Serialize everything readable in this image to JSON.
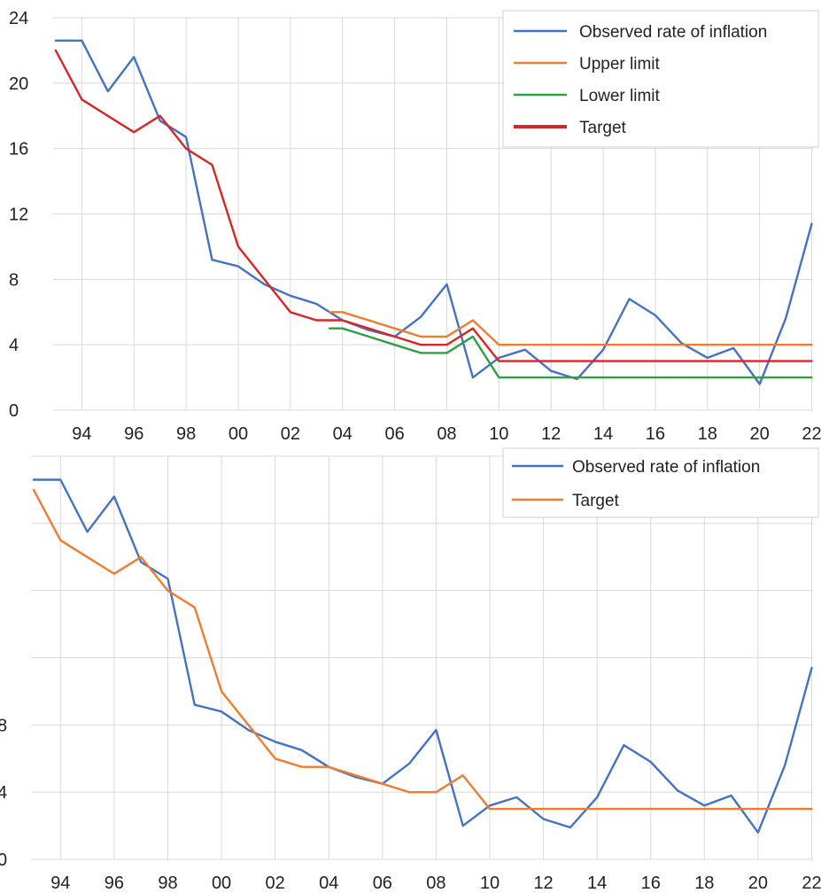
{
  "chart_data": [
    {
      "type": "line",
      "ylim": [
        0,
        24
      ],
      "yticks": [
        0,
        4,
        8,
        12,
        16,
        20,
        24
      ],
      "xlim": [
        1992.9,
        2022.05
      ],
      "xtick_labels": [
        "94",
        "96",
        "98",
        "00",
        "02",
        "04",
        "06",
        "08",
        "10",
        "12",
        "14",
        "16",
        "18",
        "20",
        "22"
      ],
      "grid": "vertical and horizontal",
      "legend_position": "top-right",
      "series": [
        {
          "name": "Observed rate of inflation",
          "color": "#4472c4",
          "x": [
            1993,
            1994,
            1995,
            1996,
            1997,
            1998,
            1999,
            2000,
            2001,
            2002,
            2003,
            2004,
            2005,
            2006,
            2007,
            2008,
            2009,
            2010,
            2011,
            2012,
            2013,
            2014,
            2015,
            2016,
            2017,
            2018,
            2019,
            2020,
            2021,
            2022
          ],
          "y": [
            22.6,
            22.6,
            19.5,
            21.6,
            17.7,
            16.7,
            9.2,
            8.8,
            7.7,
            7.0,
            6.5,
            5.5,
            4.9,
            4.5,
            5.7,
            7.7,
            2.0,
            3.2,
            3.7,
            2.4,
            1.9,
            3.7,
            6.8,
            5.8,
            4.1,
            3.2,
            3.8,
            1.6,
            5.6,
            11.4
          ]
        },
        {
          "name": "Upper limit",
          "color": "#ed7d31",
          "x": [
            2003.5,
            2004,
            2005,
            2006,
            2007,
            2008,
            2009,
            2010,
            2022
          ],
          "y": [
            6.0,
            6.0,
            5.5,
            5.0,
            4.5,
            4.5,
            5.5,
            4.0,
            4.0
          ]
        },
        {
          "name": "Lower limit",
          "color": "#2ea043",
          "x": [
            2003.5,
            2004,
            2005,
            2006,
            2007,
            2008,
            2009,
            2010,
            2022
          ],
          "y": [
            5.0,
            5.0,
            4.5,
            4.0,
            3.5,
            3.5,
            4.5,
            2.0,
            2.0
          ]
        },
        {
          "name": "Target",
          "color": "#d62728",
          "x": [
            1993,
            1994,
            1995,
            1996,
            1997,
            1998,
            1999,
            2000,
            2001,
            2002,
            2003,
            2004,
            2005,
            2006,
            2007,
            2008,
            2009,
            2010,
            2022
          ],
          "y": [
            22.0,
            19.0,
            18.0,
            17.0,
            18.0,
            16.0,
            15.0,
            10.0,
            8.0,
            6.0,
            5.5,
            5.5,
            5.0,
            4.5,
            4.0,
            4.0,
            5.0,
            3.0,
            3.0
          ]
        }
      ]
    },
    {
      "type": "line",
      "ylim": [
        0,
        24
      ],
      "yticks": [
        0,
        4,
        8
      ],
      "xlim": [
        1992.9,
        2022.05
      ],
      "xtick_labels": [
        "94",
        "96",
        "98",
        "00",
        "02",
        "04",
        "06",
        "08",
        "10",
        "12",
        "14",
        "16",
        "18",
        "20",
        "22"
      ],
      "grid": "vertical and horizontal",
      "legend_position": "top-right",
      "series": [
        {
          "name": "Observed rate of inflation",
          "color": "#4472c4",
          "x": [
            1993,
            1994,
            1995,
            1996,
            1997,
            1998,
            1999,
            2000,
            2001,
            2002,
            2003,
            2004,
            2005,
            2006,
            2007,
            2008,
            2009,
            2010,
            2011,
            2012,
            2013,
            2014,
            2015,
            2016,
            2017,
            2018,
            2019,
            2020,
            2021,
            2022
          ],
          "y": [
            22.6,
            22.6,
            19.5,
            21.6,
            17.7,
            16.7,
            9.2,
            8.8,
            7.7,
            7.0,
            6.5,
            5.5,
            4.9,
            4.5,
            5.7,
            7.7,
            2.0,
            3.2,
            3.7,
            2.4,
            1.9,
            3.7,
            6.8,
            5.8,
            4.1,
            3.2,
            3.8,
            1.6,
            5.6,
            11.4
          ]
        },
        {
          "name": "Target",
          "color": "#ed7d31",
          "x": [
            1993,
            1994,
            1995,
            1996,
            1997,
            1998,
            1999,
            2000,
            2001,
            2002,
            2003,
            2004,
            2005,
            2006,
            2007,
            2008,
            2009,
            2010,
            2022
          ],
          "y": [
            22.0,
            19.0,
            18.0,
            17.0,
            18.0,
            16.0,
            15.0,
            10.0,
            8.0,
            6.0,
            5.5,
            5.5,
            5.0,
            4.5,
            4.0,
            4.0,
            5.0,
            3.0,
            3.0
          ]
        }
      ]
    }
  ]
}
